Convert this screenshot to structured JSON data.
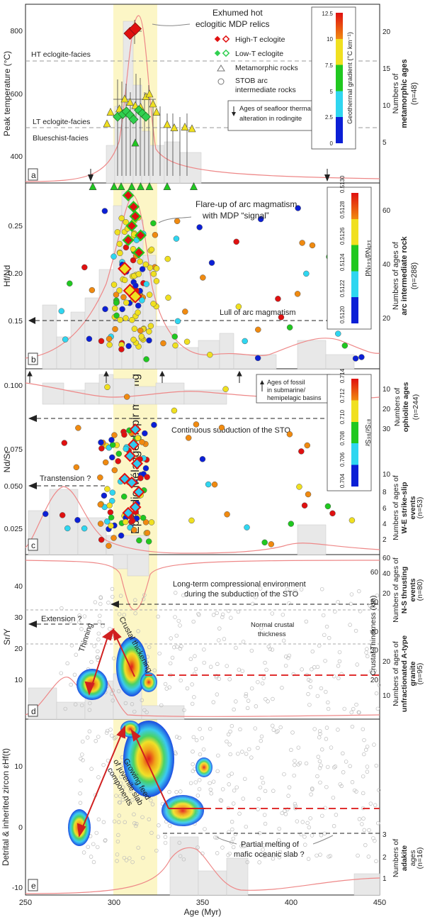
{
  "chart_data": {
    "type": "multi-panel scatter/histogram",
    "xlabel": "Age (Myr)",
    "xlim": [
      250,
      450
    ],
    "xticks": [
      250,
      300,
      350,
      400,
      450
    ],
    "shaded_band": {
      "x_range": [
        300,
        325
      ],
      "label": "Episodic Mélange diapir melting",
      "color": "#fcf6c6"
    },
    "panels": [
      {
        "letter": "a",
        "ylabel": "Peak temperature (°C)",
        "ylim": [
          340,
          880
        ],
        "yticks": [
          400,
          600,
          800
        ],
        "right_label_line1": "Numbers of",
        "right_label_line2": "metamorphic ages",
        "right_label_n": "(n=48)",
        "right_ticks": [
          "5",
          "10",
          "15",
          "20"
        ],
        "ref_lines": [
          {
            "y": 700,
            "label": "HT eclogite-facies"
          },
          {
            "y": 478,
            "label": "LT eclogite-facies"
          },
          {
            "y": 440,
            "label": "Blueschist-facies"
          }
        ],
        "annotation": "Exhumed hot eclogitic MDP relics",
        "legend": {
          "high_t": "High-T eclogite",
          "low_t": "Low-T eclogite",
          "meta": "Metamorphic rocks",
          "stob": "STOB arc intermediate rocks",
          "thermal": "Ages of seafloor thermal alteration in rodingite"
        },
        "colorbar": {
          "title": "Geothermal gradient (°C km⁻¹)",
          "ticks": [
            "0",
            "2.5",
            "5",
            "7.5",
            "10",
            "12.5"
          ],
          "colors": [
            "#0b1fd6",
            "#2fd6f0",
            "#20c820",
            "#f0e020",
            "#f08a10",
            "#e01010"
          ]
        },
        "high_t_eclogite": [
          [
            309,
            792
          ],
          [
            312,
            806
          ]
        ],
        "low_t_eclogite": [
          [
            302,
            540
          ],
          [
            305,
            548
          ],
          [
            307,
            556
          ],
          [
            309,
            545
          ],
          [
            311,
            532
          ],
          [
            314,
            560
          ],
          [
            316,
            550
          ],
          [
            318,
            540
          ]
        ],
        "metamorphic": [
          [
            296,
            520
          ],
          [
            298,
            555
          ],
          [
            303,
            565
          ],
          [
            306,
            595
          ],
          [
            309,
            585
          ],
          [
            312,
            575
          ],
          [
            315,
            570
          ],
          [
            318,
            602
          ],
          [
            320,
            610
          ],
          [
            322,
            580
          ],
          [
            324,
            555
          ],
          [
            330,
            518
          ],
          [
            334,
            508
          ],
          [
            340,
            510
          ],
          [
            344,
            505
          ],
          [
            312,
            462
          ],
          [
            304,
            330
          ],
          [
            310,
            330
          ],
          [
            315,
            330
          ],
          [
            320,
            330
          ],
          [
            330,
            330
          ],
          [
            345,
            330
          ],
          [
            288,
            330
          ],
          [
            300,
            330
          ]
        ],
        "thermal_alteration_arrows": [
          286,
          420
        ]
      },
      {
        "letter": "b",
        "ylabel": "Hf/Nd",
        "ylim": [
          0.11,
          0.305
        ],
        "yticks": [
          0.15,
          0.2,
          0.25
        ],
        "right_label_line1": "Numbers of ages of",
        "right_label_line2": "arc intermediate rock",
        "right_label_n": "(n=288)",
        "right_ticks": [
          "20",
          "40",
          "60"
        ],
        "annotation": "Flare-up of arc magmatism with MDP “signal”",
        "lull_label": "Lull of arc magmatism",
        "lull_y": 0.152,
        "colorbar": {
          "title": "¹⁴³Nd/¹⁴⁴Nd",
          "ticks": [
            "0.5120",
            "0.5122",
            "0.5124",
            "0.5126",
            "0.5128",
            "0.5130"
          ],
          "colors": [
            "#0b1fd6",
            "#2fd6f0",
            "#20c820",
            "#f0e020",
            "#f08a10",
            "#e01010"
          ]
        },
        "high_t_eclogite": [
          [
            306,
            0.215
          ],
          [
            309,
            0.192
          ],
          [
            312,
            0.186
          ]
        ],
        "low_t_eclogite": [
          [
            308,
            0.292
          ],
          [
            311,
            0.28
          ],
          [
            312,
            0.27
          ],
          [
            310,
            0.26
          ],
          [
            308,
            0.245
          ],
          [
            315,
            0.25
          ],
          [
            314,
            0.232
          ]
        ]
      },
      {
        "letter": "c",
        "ylabel": "Nd/Sr",
        "ylim": [
          0.006,
          0.104
        ],
        "yticks": [
          0.025,
          0.05,
          0.075,
          0.1
        ],
        "right_label_line1": "Numbers of",
        "right_label_line2": "ophiolite ages",
        "right_label_n": "(n=244)",
        "right_label2_line1": "Numbers of ages of",
        "right_label2_line2": "W-E strike-slip",
        "right_label2_line3": "events",
        "right_label2_n": "(n=53)",
        "right_ticks": [
          "10",
          "20",
          "30"
        ],
        "right_ticks2": [
          "2",
          "4",
          "6",
          "8",
          "10"
        ],
        "continuous_label": "Continuous subduction of the STO",
        "continuous_y": 0.074,
        "transtension_label": "Transtension ?",
        "transtension_y": 0.036,
        "fossil_label": "Ages of fossil in submarine/ hemipelagic basins",
        "fossil_arrows": [
          251,
          285,
          328,
          370
        ],
        "colorbar": {
          "title": "⁸⁷Sr/⁸⁶Sr",
          "ticks": [
            "0.704",
            "0.706",
            "0.708",
            "0.710",
            "0.712",
            "0.714"
          ],
          "colors": [
            "#0b1fd6",
            "#2fd6f0",
            "#20c820",
            "#f0e020",
            "#f08a10",
            "#e01010"
          ]
        },
        "low_t_eclogite": [
          [
            312,
            0.072
          ],
          [
            311,
            0.064
          ],
          [
            309,
            0.058
          ],
          [
            313,
            0.054
          ],
          [
            306,
            0.046
          ],
          [
            310,
            0.044
          ],
          [
            314,
            0.039
          ],
          [
            312,
            0.031
          ],
          [
            308,
            0.028
          ]
        ]
      },
      {
        "letter": "d",
        "ylabel": "Sr/Y",
        "ylim": [
          0,
          50
        ],
        "yticks": [
          10,
          20,
          30,
          40
        ],
        "right_label_line1": "Numbers of ages of",
        "right_label_line2": "N-S thrusting",
        "right_label_line3": "events",
        "right_label_n": "(n=80)",
        "right_label2_line1": "Numbers of ages of",
        "right_label2_line2": "unfractionated A-type",
        "right_label2_line3": "granite",
        "right_label2_n": "(n=95)",
        "thickness_label": "Crustal Thinckness (km)",
        "thickness_ticks": [
          "20",
          "30",
          "40",
          "50",
          "60"
        ],
        "right_ticks": [
          "20",
          "40",
          "60"
        ],
        "right_ticks2": [
          "10",
          "20"
        ],
        "compression_label": "Long-term compressional environment during the subduction of the STO",
        "compression_y": 33,
        "extension_label": "Extension ?",
        "extension_y": 25.5,
        "normal_crust_label": "Normal crustal thickness",
        "normal_crust_range": [
          20,
          29
        ],
        "thinning_label": "Thinning",
        "thickening_label": "Crustal thickening",
        "red_dash_y": 11.5
      },
      {
        "letter": "e",
        "ylabel": "Detrital & inherited zircon εHf(t)",
        "ylim": [
          -11,
          16
        ],
        "yticks": [
          -10,
          0,
          10
        ],
        "right_label_line1": "Numbers of",
        "right_label_line2": "adakite",
        "right_label_line3": "ages",
        "right_label_n": "(n=16)",
        "right_ticks": [
          "1",
          "2",
          "3"
        ],
        "growing_label": "Growing feed of juvenile slab components",
        "partial_melting_label": "Partial melting of mafic oceanic slab ?",
        "red_dash_y": 3.2
      }
    ]
  }
}
